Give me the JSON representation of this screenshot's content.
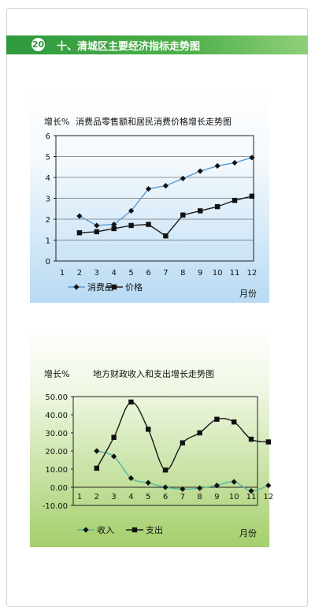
{
  "header": {
    "badge": "20",
    "title": "十、清城区主要经济指标走势图"
  },
  "chart_data": [
    {
      "type": "line",
      "title": "消费品零售额和居民消费价格增长走势图",
      "ylabel": "增长%",
      "xlabel": "月份",
      "x": [
        1,
        2,
        3,
        4,
        5,
        6,
        7,
        8,
        9,
        10,
        11,
        12
      ],
      "xlim": [
        1,
        12
      ],
      "ylim": [
        0,
        6
      ],
      "y_ticks": [
        "0",
        "1",
        "2",
        "3",
        "4",
        "5",
        "6"
      ],
      "series": [
        {
          "name": "消费品",
          "marker": "diamond",
          "color": "#5a9bd5",
          "x": [
            2,
            3,
            4,
            5,
            6,
            7,
            8,
            9,
            10,
            11,
            12
          ],
          "values": [
            2.15,
            1.7,
            1.75,
            2.4,
            3.45,
            3.6,
            3.95,
            4.3,
            4.55,
            4.7,
            4.95
          ]
        },
        {
          "name": "价格",
          "marker": "square",
          "color": "#1a1a1a",
          "x": [
            2,
            3,
            4,
            5,
            6,
            7,
            8,
            9,
            10,
            11,
            12
          ],
          "values": [
            1.35,
            1.4,
            1.55,
            1.7,
            1.75,
            1.2,
            2.2,
            2.4,
            2.6,
            2.9,
            3.1
          ]
        }
      ],
      "grid": true,
      "legend": "bottom"
    },
    {
      "type": "line",
      "title": "地方财政收入和支出增长走势图",
      "ylabel": "增长%",
      "xlabel": "月份",
      "x": [
        1,
        2,
        3,
        4,
        5,
        6,
        7,
        8,
        9,
        10,
        11,
        12
      ],
      "xlim": [
        1,
        12
      ],
      "ylim": [
        -10,
        50
      ],
      "y_ticks": [
        "-10.00",
        "0.00",
        "10.00",
        "20.00",
        "30.00",
        "40.00",
        "50.00"
      ],
      "series": [
        {
          "name": "收入",
          "marker": "diamond",
          "color": "#4fb8a0",
          "x": [
            2,
            3,
            4,
            5,
            6,
            7,
            8,
            9,
            10,
            11,
            12
          ],
          "values": [
            20.0,
            17.0,
            5.0,
            2.5,
            0.0,
            -1.0,
            -0.5,
            1.0,
            3.0,
            -2.0,
            1.0
          ]
        },
        {
          "name": "支出",
          "marker": "square",
          "color": "#1a1a1a",
          "x": [
            2,
            3,
            4,
            5,
            6,
            7,
            8,
            9,
            10,
            11,
            12
          ],
          "values": [
            10.5,
            27.5,
            47.0,
            32.0,
            9.5,
            24.5,
            30.0,
            37.5,
            36.0,
            26.5,
            25.0
          ]
        }
      ],
      "grid": false,
      "legend": "bottom"
    }
  ]
}
